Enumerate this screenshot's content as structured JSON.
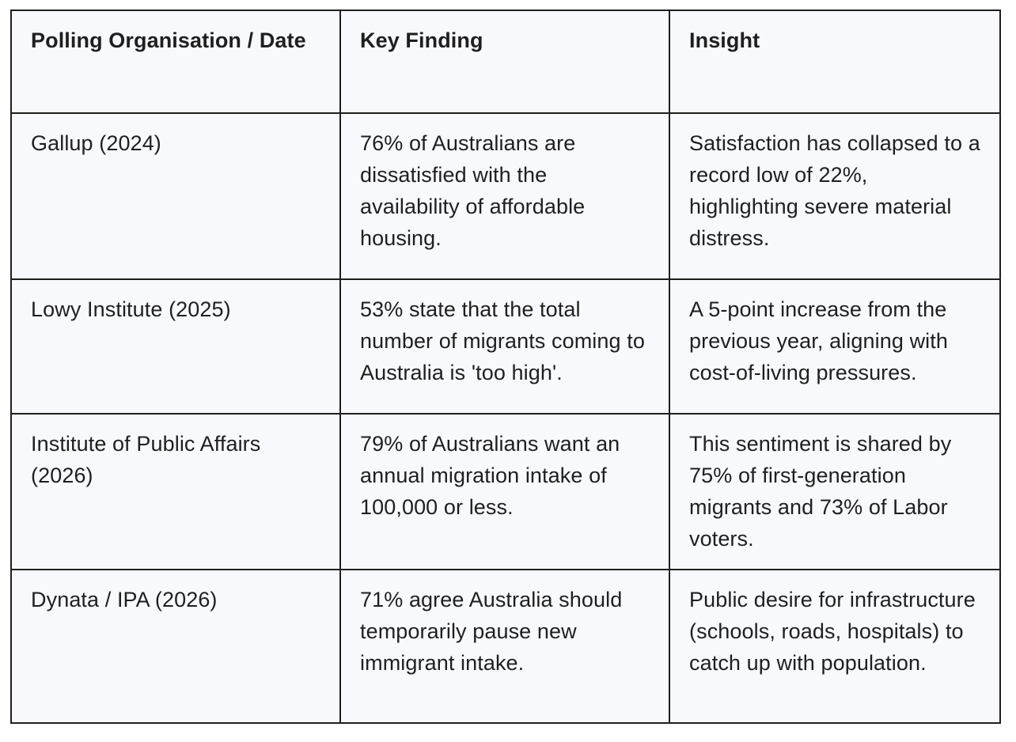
{
  "table": {
    "headers": [
      "Polling Organisation / Date",
      "Key Finding",
      "Insight"
    ],
    "rows": [
      {
        "organisation": "Gallup (2024)",
        "finding": "76% of Australians are dissatisfied with the availability of affordable housing.",
        "insight": "Satisfaction has collapsed to a record low of 22%, highlighting severe material distress."
      },
      {
        "organisation": "Lowy Institute (2025)",
        "finding": "53% state that the total number of migrants coming to Australia is 'too high'.",
        "insight": "A 5-point increase from the previous year, aligning with cost-of-living pressures."
      },
      {
        "organisation": "Institute of Public Affairs (2026)",
        "finding": "79% of Australians want an annual migration intake of 100,000 or less.",
        "insight": "This sentiment is shared by 75% of first-generation migrants and 73% of Labor voters."
      },
      {
        "organisation": "Dynata / IPA (2026)",
        "finding": "71% agree Australia should temporarily pause new immigrant intake.",
        "insight": "Public desire for infrastructure (schools, roads, hospitals) to catch up with population."
      }
    ]
  }
}
